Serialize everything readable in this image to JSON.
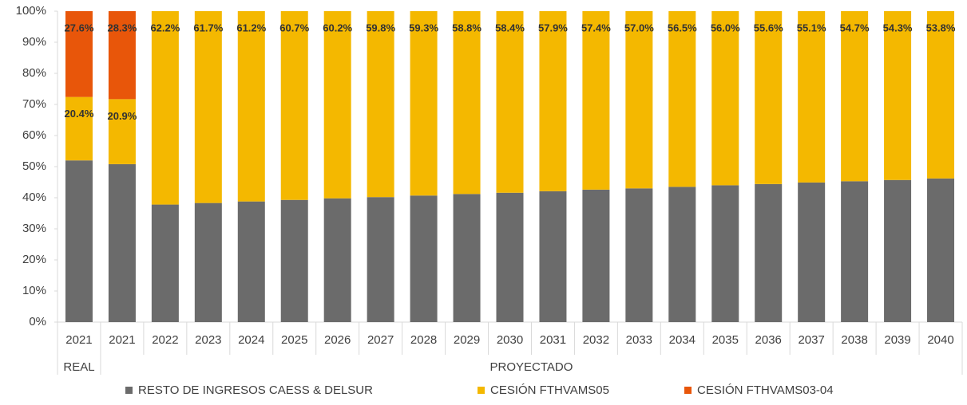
{
  "chart_data": {
    "type": "stacked_bar",
    "groups": [
      {
        "label": "REAL",
        "categories": [
          "2021"
        ]
      },
      {
        "label": "PROYECTADO",
        "categories": [
          "2021",
          "2022",
          "2023",
          "2024",
          "2025",
          "2026",
          "2027",
          "2028",
          "2029",
          "2030",
          "2031",
          "2032",
          "2033",
          "2034",
          "2035",
          "2036",
          "2037",
          "2038",
          "2039",
          "2040"
        ]
      }
    ],
    "series": [
      {
        "name": "RESTO DE INGRESOS CAESS & DELSUR",
        "color": "#6b6b6b",
        "values": [
          52.0,
          50.8,
          37.8,
          38.3,
          38.8,
          39.3,
          39.8,
          40.2,
          40.7,
          41.2,
          41.6,
          42.1,
          42.6,
          43.0,
          43.5,
          44.0,
          44.4,
          44.9,
          45.3,
          45.7,
          46.2
        ]
      },
      {
        "name": "CESIÓN FTHVAMS05",
        "color": "#f4b800",
        "values": [
          20.4,
          20.9,
          62.2,
          61.7,
          61.2,
          60.7,
          60.2,
          59.8,
          59.3,
          58.8,
          58.4,
          57.9,
          57.4,
          57.0,
          56.5,
          56.0,
          55.6,
          55.1,
          54.7,
          54.3,
          53.8
        ],
        "value_labels": [
          "20.4%",
          "20.9%",
          "62.2%",
          "61.7%",
          "61.2%",
          "60.7%",
          "60.2%",
          "59.8%",
          "59.3%",
          "58.8%",
          "58.4%",
          "57.9%",
          "57.4%",
          "57.0%",
          "56.5%",
          "56.0%",
          "55.6%",
          "55.1%",
          "54.7%",
          "54.3%",
          "53.8%"
        ]
      },
      {
        "name": "CESIÓN FTHVAMS03-04",
        "color": "#e8560a",
        "values": [
          27.6,
          28.3,
          null,
          null,
          null,
          null,
          null,
          null,
          null,
          null,
          null,
          null,
          null,
          null,
          null,
          null,
          null,
          null,
          null,
          null,
          null
        ],
        "value_labels": [
          "27.6%",
          "28.3%",
          null,
          null,
          null,
          null,
          null,
          null,
          null,
          null,
          null,
          null,
          null,
          null,
          null,
          null,
          null,
          null,
          null,
          null,
          null
        ]
      }
    ],
    "ylim": [
      0,
      100
    ],
    "yticks": [
      {
        "value": 0,
        "label": "0%"
      },
      {
        "value": 10,
        "label": "10%"
      },
      {
        "value": 20,
        "label": "20%"
      },
      {
        "value": 30,
        "label": "30%"
      },
      {
        "value": 40,
        "label": "40%"
      },
      {
        "value": 50,
        "label": "50%"
      },
      {
        "value": 60,
        "label": "60%"
      },
      {
        "value": 70,
        "label": "70%"
      },
      {
        "value": 80,
        "label": "80%"
      },
      {
        "value": 90,
        "label": "90%"
      },
      {
        "value": 100,
        "label": "100%"
      }
    ],
    "legend": "bottom"
  }
}
